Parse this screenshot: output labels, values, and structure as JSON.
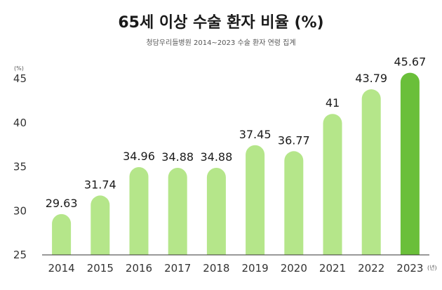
{
  "title": "65세 이상 수술 환자 비율 (%)",
  "subtitle": "청담우리들병원 2014~2023 수술 환자 연령 집계",
  "y_unit": "(%)",
  "x_unit": "(년)",
  "colors": {
    "bar": "#b5e68a",
    "highlight": "#6abf3a",
    "axis": "#333333"
  },
  "chart_data": {
    "type": "bar",
    "title": "65세 이상 수술 환자 비율 (%)",
    "subtitle": "청담우리들병원 2014~2023 수술 환자 연령 집계",
    "categories": [
      "2014",
      "2015",
      "2016",
      "2017",
      "2018",
      "2019",
      "2020",
      "2021",
      "2022",
      "2023"
    ],
    "values": [
      29.63,
      31.74,
      34.96,
      34.88,
      34.88,
      37.45,
      36.77,
      41,
      43.79,
      45.67
    ],
    "value_labels": [
      "29.63",
      "31.74",
      "34.96",
      "34.88",
      "34.88",
      "37.45",
      "36.77",
      "41",
      "43.79",
      "45.67"
    ],
    "highlight_category": "2023",
    "ylim": [
      25,
      45
    ],
    "yticks": [
      25,
      30,
      35,
      40,
      45
    ],
    "grid": false,
    "legend": "none"
  }
}
